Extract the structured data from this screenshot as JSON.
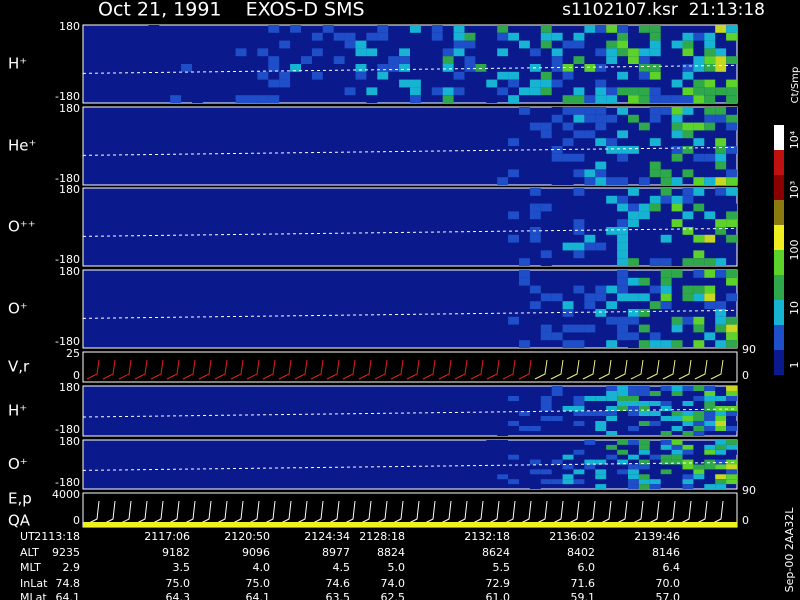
{
  "header": {
    "title": "Oct 21, 1991    EXOS-D SMS",
    "file": "s1102107.ksr  21:13:18"
  },
  "panels": [
    {
      "label": "H⁺",
      "ticks": [
        "180",
        "-180"
      ]
    },
    {
      "label": "He⁺",
      "ticks": [
        "180",
        "-180"
      ]
    },
    {
      "label": "O⁺⁺",
      "ticks": [
        "180",
        "-180"
      ]
    },
    {
      "label": "O⁺",
      "ticks": [
        "180",
        "-180"
      ]
    },
    {
      "label": "V,r",
      "ticks": [
        "25",
        "0"
      ],
      "right_ticks": [
        "90",
        "0"
      ]
    },
    {
      "label": "H⁺",
      "ticks": [
        "180",
        "-180"
      ]
    },
    {
      "label": "O⁺",
      "ticks": [
        "180",
        "-180"
      ]
    },
    {
      "label": "E,p",
      "label2": "QA",
      "ticks": [
        "4000",
        "0"
      ],
      "right_ticks": [
        "90",
        "0"
      ]
    }
  ],
  "colorbar": {
    "unit": "Ct/Smp",
    "ticks": [
      "10⁴",
      "10³",
      "100",
      "10",
      "1"
    ]
  },
  "table": {
    "rows": [
      {
        "name": "UT",
        "values": [
          "2113:18",
          "2117:06",
          "2120:50",
          "2124:34",
          "2128:18",
          "2132:18",
          "2136:02",
          "2139:46"
        ]
      },
      {
        "name": "ALT",
        "values": [
          "9235",
          "9182",
          "9096",
          "8977",
          "8824",
          "8624",
          "8402",
          "8146"
        ]
      },
      {
        "name": "MLT",
        "values": [
          "2.9",
          "3.5",
          "4.0",
          "4.5",
          "5.0",
          "5.5",
          "6.0",
          "6.4"
        ]
      },
      {
        "name": "InLat",
        "values": [
          "74.8",
          "75.0",
          "75.0",
          "74.6",
          "74.0",
          "72.9",
          "71.6",
          "70.0"
        ]
      },
      {
        "name": "MLat",
        "values": [
          "64.1",
          "64.3",
          "64.1",
          "63.5",
          "62.5",
          "61.0",
          "59.1",
          "57.0"
        ]
      }
    ]
  },
  "footer": "Sep-00 2AA32L"
}
